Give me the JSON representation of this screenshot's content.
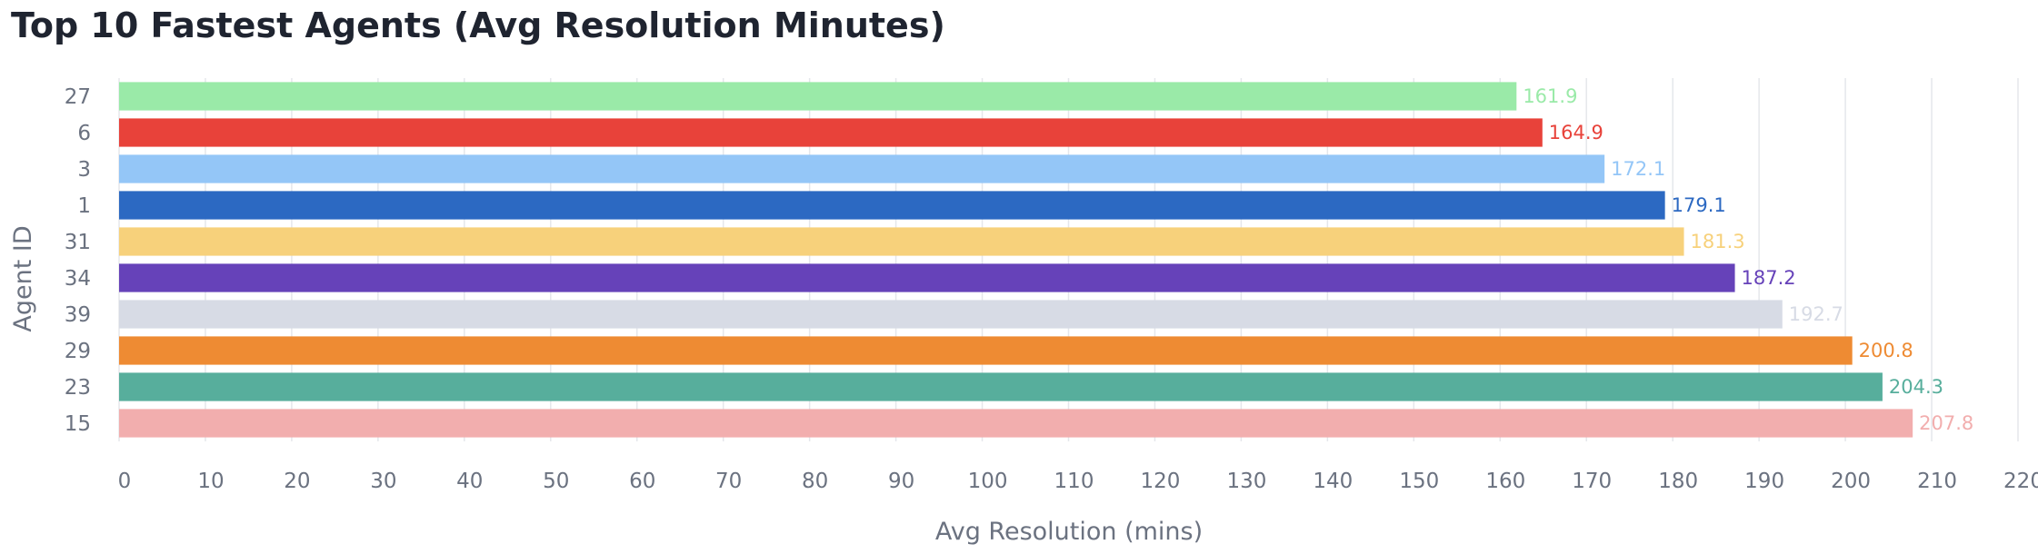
{
  "chart_data": {
    "type": "bar",
    "orientation": "horizontal",
    "title": "Top 10 Fastest Agents (Avg Resolution Minutes)",
    "xlabel": "Avg Resolution (mins)",
    "ylabel": "Agent ID",
    "xlim": [
      0,
      220
    ],
    "xticks": [
      0,
      10,
      20,
      30,
      40,
      50,
      60,
      70,
      80,
      90,
      100,
      110,
      120,
      130,
      140,
      150,
      160,
      170,
      180,
      190,
      200,
      210,
      220
    ],
    "grid": "vertical",
    "legend": "none",
    "categories": [
      "27",
      "6",
      "3",
      "1",
      "31",
      "34",
      "39",
      "29",
      "23",
      "15"
    ],
    "values": [
      161.9,
      164.9,
      172.1,
      179.1,
      181.3,
      187.2,
      192.7,
      200.8,
      204.3,
      207.8
    ],
    "value_labels": [
      "161.9",
      "164.9",
      "172.1",
      "179.1",
      "181.3",
      "187.2",
      "192.7",
      "200.8",
      "204.3",
      "207.8"
    ],
    "colors": [
      "#9aeaa8",
      "#e8423a",
      "#94c6f7",
      "#2c69c2",
      "#f7d17b",
      "#6642b9",
      "#d7dbe5",
      "#ee8b33",
      "#57ae9c",
      "#f2aeae"
    ]
  }
}
